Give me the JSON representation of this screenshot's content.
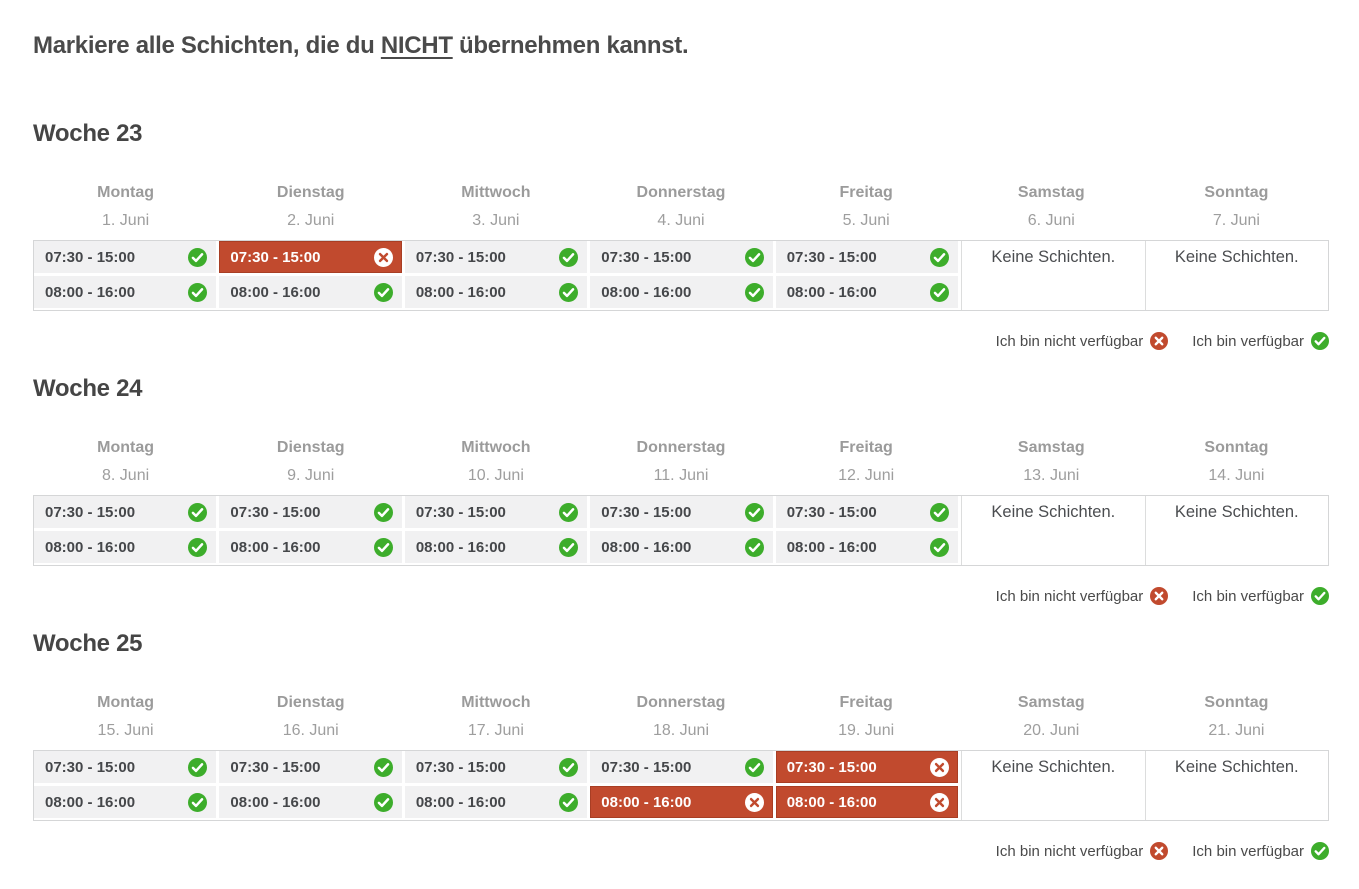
{
  "title": {
    "prefix": "Markiere alle Schichten, die du ",
    "emphasis": "NICHT",
    "suffix": " übernehmen kannst."
  },
  "labels": {
    "no_shifts": "Keine Schichten."
  },
  "legend": {
    "unavailable": "Ich bin nicht verfügbar",
    "available": "Ich bin verfügbar"
  },
  "colors": {
    "red": "#c14a2e",
    "red_border": "#a83e24",
    "green": "#3dad2b",
    "white": "#ffffff",
    "cell_gray": "#f1f1f2"
  },
  "weeks": [
    {
      "name": "Woche 23",
      "days": [
        {
          "day": "Montag",
          "date": "1. Juni",
          "shifts": [
            {
              "time": "07:30 - 15:00",
              "state": "available"
            },
            {
              "time": "08:00 - 16:00",
              "state": "available"
            }
          ]
        },
        {
          "day": "Dienstag",
          "date": "2. Juni",
          "shifts": [
            {
              "time": "07:30 - 15:00",
              "state": "unavailable"
            },
            {
              "time": "08:00 - 16:00",
              "state": "available"
            }
          ]
        },
        {
          "day": "Mittwoch",
          "date": "3. Juni",
          "shifts": [
            {
              "time": "07:30 - 15:00",
              "state": "available"
            },
            {
              "time": "08:00 - 16:00",
              "state": "available"
            }
          ]
        },
        {
          "day": "Donnerstag",
          "date": "4. Juni",
          "shifts": [
            {
              "time": "07:30 - 15:00",
              "state": "available"
            },
            {
              "time": "08:00 - 16:00",
              "state": "available"
            }
          ]
        },
        {
          "day": "Freitag",
          "date": "5. Juni",
          "shifts": [
            {
              "time": "07:30 - 15:00",
              "state": "available"
            },
            {
              "time": "08:00 - 16:00",
              "state": "available"
            }
          ]
        },
        {
          "day": "Samstag",
          "date": "6. Juni",
          "shifts": []
        },
        {
          "day": "Sonntag",
          "date": "7. Juni",
          "shifts": []
        }
      ]
    },
    {
      "name": "Woche 24",
      "days": [
        {
          "day": "Montag",
          "date": "8. Juni",
          "shifts": [
            {
              "time": "07:30 - 15:00",
              "state": "available"
            },
            {
              "time": "08:00 - 16:00",
              "state": "available"
            }
          ]
        },
        {
          "day": "Dienstag",
          "date": "9. Juni",
          "shifts": [
            {
              "time": "07:30 - 15:00",
              "state": "available"
            },
            {
              "time": "08:00 - 16:00",
              "state": "available"
            }
          ]
        },
        {
          "day": "Mittwoch",
          "date": "10. Juni",
          "shifts": [
            {
              "time": "07:30 - 15:00",
              "state": "available"
            },
            {
              "time": "08:00 - 16:00",
              "state": "available"
            }
          ]
        },
        {
          "day": "Donnerstag",
          "date": "11. Juni",
          "shifts": [
            {
              "time": "07:30 - 15:00",
              "state": "available"
            },
            {
              "time": "08:00 - 16:00",
              "state": "available"
            }
          ]
        },
        {
          "day": "Freitag",
          "date": "12. Juni",
          "shifts": [
            {
              "time": "07:30 - 15:00",
              "state": "available"
            },
            {
              "time": "08:00 - 16:00",
              "state": "available"
            }
          ]
        },
        {
          "day": "Samstag",
          "date": "13. Juni",
          "shifts": []
        },
        {
          "day": "Sonntag",
          "date": "14. Juni",
          "shifts": []
        }
      ]
    },
    {
      "name": "Woche 25",
      "days": [
        {
          "day": "Montag",
          "date": "15. Juni",
          "shifts": [
            {
              "time": "07:30 - 15:00",
              "state": "available"
            },
            {
              "time": "08:00 - 16:00",
              "state": "available"
            }
          ]
        },
        {
          "day": "Dienstag",
          "date": "16. Juni",
          "shifts": [
            {
              "time": "07:30 - 15:00",
              "state": "available"
            },
            {
              "time": "08:00 - 16:00",
              "state": "available"
            }
          ]
        },
        {
          "day": "Mittwoch",
          "date": "17. Juni",
          "shifts": [
            {
              "time": "07:30 - 15:00",
              "state": "available"
            },
            {
              "time": "08:00 - 16:00",
              "state": "available"
            }
          ]
        },
        {
          "day": "Donnerstag",
          "date": "18. Juni",
          "shifts": [
            {
              "time": "07:30 - 15:00",
              "state": "available"
            },
            {
              "time": "08:00 - 16:00",
              "state": "unavailable"
            }
          ]
        },
        {
          "day": "Freitag",
          "date": "19. Juni",
          "shifts": [
            {
              "time": "07:30 - 15:00",
              "state": "unavailable"
            },
            {
              "time": "08:00 - 16:00",
              "state": "unavailable"
            }
          ]
        },
        {
          "day": "Samstag",
          "date": "20. Juni",
          "shifts": []
        },
        {
          "day": "Sonntag",
          "date": "21. Juni",
          "shifts": []
        }
      ]
    }
  ]
}
